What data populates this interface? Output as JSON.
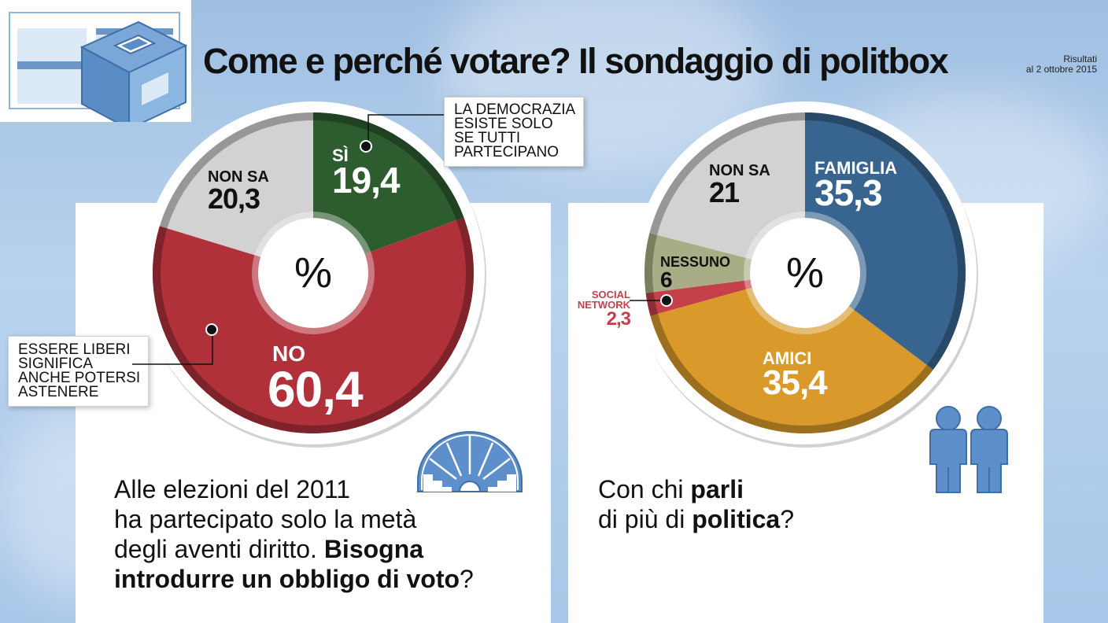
{
  "title": "Come e perché votare? Il sondaggio di politbox",
  "date_note": {
    "line1": "Risultati",
    "line2": "al 2 ottobre 2015"
  },
  "icons": [
    "ballot-box-icon",
    "parliament-icon",
    "two-people-icon"
  ],
  "callouts": {
    "yes": [
      "LA DEMOCRAZIA",
      "ESISTE SOLO",
      "SE TUTTI",
      "PARTECIPANO"
    ],
    "no": [
      "ESSERE LIBERI",
      "SIGNIFICA",
      "ANCHE POTERSI",
      "ASTENERE"
    ]
  },
  "questions": {
    "left": {
      "line1": "Alle elezioni del 2011",
      "line2": "ha partecipato solo la metà",
      "line3a": "degli aventi diritto. ",
      "line3b": "Bisogna",
      "line4a": "introdurre un obbligo di voto",
      "line4b": "?"
    },
    "right": {
      "line1a": "Con chi ",
      "line1b": "parli",
      "line2a": "di più di ",
      "line2b": "politica",
      "line2c": "?"
    }
  },
  "colors": {
    "si": "#2d5c2f",
    "no": "#b1313a",
    "non_sa": "#d2d2d2",
    "famiglia": "#37658f",
    "amici": "#d99a2b",
    "nessuno": "#a9ad86",
    "social_network": "#c4404a"
  },
  "chart_data": [
    {
      "type": "pie",
      "center_label": "%",
      "slices": [
        {
          "name": "SÌ",
          "value": 19.4,
          "display": "19,4",
          "color": "#2d5c2f"
        },
        {
          "name": "NO",
          "value": 60.4,
          "display": "60,4",
          "color": "#b1313a"
        },
        {
          "name": "NON SA",
          "value": 20.3,
          "display": "20,3",
          "color": "#d2d2d2"
        }
      ]
    },
    {
      "type": "pie",
      "center_label": "%",
      "slices": [
        {
          "name": "FAMIGLIA",
          "value": 35.3,
          "display": "35,3",
          "color": "#37658f"
        },
        {
          "name": "AMICI",
          "value": 35.4,
          "display": "35,4",
          "color": "#d99a2b"
        },
        {
          "name": "SOCIAL NETWORK",
          "value": 2.3,
          "display": "2,3",
          "color": "#c4404a"
        },
        {
          "name": "NESSUNO",
          "value": 6,
          "display": "6",
          "color": "#a9ad86"
        },
        {
          "name": "NON SA",
          "value": 21,
          "display": "21",
          "color": "#d2d2d2"
        }
      ]
    }
  ]
}
